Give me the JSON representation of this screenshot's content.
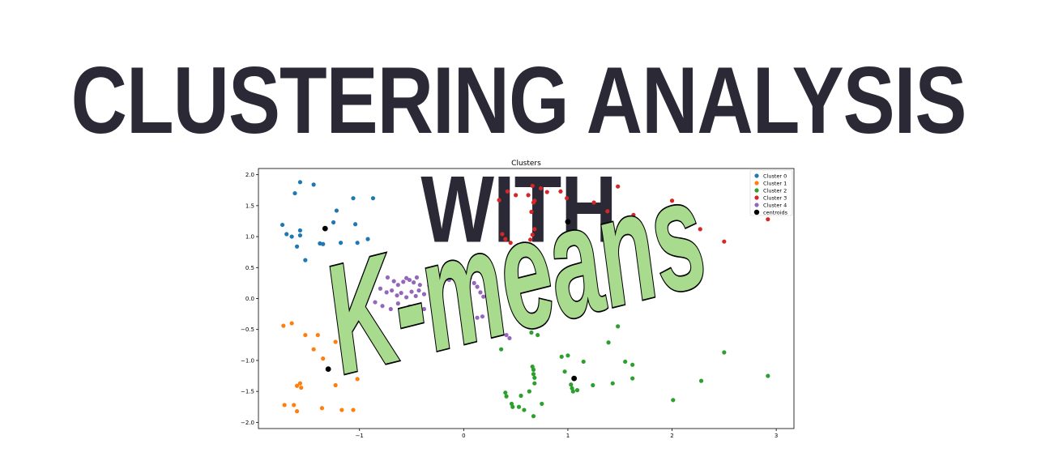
{
  "banner": {
    "title": "CLUSTERING ANALYSIS WITH",
    "subtitle": "K-means",
    "subtitle_fill": "#a9db8e",
    "subtitle_stroke": "#000000",
    "title_color": "#2a2935"
  },
  "chart_data": {
    "type": "scatter",
    "title": "Clusters",
    "xlabel": "",
    "ylabel": "",
    "xlim": [
      -1.97,
      3.17
    ],
    "ylim": [
      -2.1,
      2.1
    ],
    "xticks": [
      -1,
      0,
      1,
      2,
      3
    ],
    "xtick_labels": [
      "−1",
      "0",
      "1",
      "2",
      "3"
    ],
    "yticks": [
      -2.0,
      -1.5,
      -1.0,
      -0.5,
      0.0,
      0.5,
      1.0,
      1.5,
      2.0
    ],
    "ytick_labels": [
      "−2.0",
      "−1.5",
      "−1.0",
      "−0.5",
      "0.0",
      "0.5",
      "1.0",
      "1.5",
      "2.0"
    ],
    "grid": false,
    "legend_position": "top-right",
    "series": [
      {
        "name": "Cluster 0",
        "color": "#1f77b4",
        "points": [
          [
            -1.57,
            1.88
          ],
          [
            -1.44,
            1.84
          ],
          [
            -1.62,
            1.7
          ],
          [
            -1.06,
            1.62
          ],
          [
            -0.87,
            1.62
          ],
          [
            -1.22,
            1.42
          ],
          [
            -1.25,
            1.23
          ],
          [
            -1.74,
            1.19
          ],
          [
            -1.04,
            1.2
          ],
          [
            -1.57,
            1.1
          ],
          [
            -1.7,
            1.04
          ],
          [
            -1.65,
            1.0
          ],
          [
            -1.57,
            1.02
          ],
          [
            -1.38,
            0.89
          ],
          [
            -1.35,
            0.88
          ],
          [
            -1.18,
            0.9
          ],
          [
            -1.02,
            0.9
          ],
          [
            -0.92,
            0.96
          ],
          [
            -1.6,
            0.84
          ],
          [
            -1.52,
            0.62
          ],
          [
            -1.25,
            0.42
          ],
          [
            -0.84,
            0.57
          ]
        ]
      },
      {
        "name": "Cluster 1",
        "color": "#ff7f0e",
        "points": [
          [
            -1.73,
            -0.44
          ],
          [
            -1.65,
            -0.4
          ],
          [
            -1.52,
            -0.59
          ],
          [
            -1.4,
            -0.59
          ],
          [
            -1.44,
            -0.82
          ],
          [
            -1.35,
            -0.97
          ],
          [
            -1.23,
            -0.7
          ],
          [
            -1.6,
            -1.41
          ],
          [
            -1.57,
            -1.37
          ],
          [
            -1.56,
            -1.44
          ],
          [
            -1.23,
            -1.4
          ],
          [
            -1.02,
            -1.3
          ],
          [
            -1.72,
            -1.72
          ],
          [
            -1.63,
            -1.72
          ],
          [
            -1.6,
            -1.82
          ],
          [
            -1.36,
            -1.77
          ],
          [
            -1.17,
            -1.8
          ],
          [
            -1.06,
            -1.8
          ]
        ]
      },
      {
        "name": "Cluster 2",
        "color": "#2ca02c",
        "points": [
          [
            0.36,
            -0.82
          ],
          [
            0.4,
            -1.52
          ],
          [
            0.41,
            -1.58
          ],
          [
            0.46,
            -1.7
          ],
          [
            0.47,
            -1.75
          ],
          [
            0.53,
            -1.75
          ],
          [
            0.55,
            -1.57
          ],
          [
            0.58,
            -1.8
          ],
          [
            0.63,
            -1.5
          ],
          [
            0.66,
            -1.1
          ],
          [
            0.67,
            -1.15
          ],
          [
            0.67,
            -1.22
          ],
          [
            0.68,
            -1.28
          ],
          [
            0.68,
            -1.37
          ],
          [
            0.75,
            -1.7
          ],
          [
            0.67,
            -1.9
          ],
          [
            0.65,
            -0.55
          ],
          [
            0.71,
            -0.59
          ],
          [
            0.94,
            -0.94
          ],
          [
            0.97,
            -1.18
          ],
          [
            1.0,
            -0.92
          ],
          [
            1.03,
            -1.39
          ],
          [
            1.04,
            -1.45
          ],
          [
            1.05,
            -1.5
          ],
          [
            1.09,
            -1.48
          ],
          [
            1.15,
            -1.02
          ],
          [
            1.24,
            -1.4
          ],
          [
            1.39,
            -0.71
          ],
          [
            1.43,
            -1.37
          ],
          [
            1.48,
            -0.45
          ],
          [
            1.55,
            -1.02
          ],
          [
            1.62,
            -1.07
          ],
          [
            1.62,
            -1.29
          ],
          [
            2.01,
            -1.64
          ],
          [
            2.28,
            -1.33
          ],
          [
            2.5,
            -0.87
          ],
          [
            2.92,
            -1.25
          ]
        ]
      },
      {
        "name": "Cluster 3",
        "color": "#d62728",
        "points": [
          [
            0.42,
            1.73
          ],
          [
            0.5,
            1.67
          ],
          [
            0.62,
            1.67
          ],
          [
            0.66,
            1.82
          ],
          [
            0.67,
            1.55
          ],
          [
            0.68,
            1.58
          ],
          [
            0.74,
            1.78
          ],
          [
            0.65,
            1.4
          ],
          [
            0.8,
            1.72
          ],
          [
            0.34,
            1.59
          ],
          [
            0.37,
            1.04
          ],
          [
            0.4,
            0.96
          ],
          [
            0.45,
            0.9
          ],
          [
            0.55,
            0.8
          ],
          [
            0.64,
            0.87
          ],
          [
            0.64,
            0.95
          ],
          [
            0.66,
            1.03
          ],
          [
            0.68,
            1.12
          ],
          [
            0.93,
            1.73
          ],
          [
            0.99,
            1.62
          ],
          [
            0.95,
            0.97
          ],
          [
            1.25,
            1.55
          ],
          [
            1.38,
            1.41
          ],
          [
            1.48,
            1.81
          ],
          [
            1.63,
            1.35
          ],
          [
            1.69,
            1.22
          ],
          [
            2.0,
            1.58
          ],
          [
            2.27,
            1.12
          ],
          [
            2.5,
            0.92
          ],
          [
            2.92,
            1.28
          ]
        ]
      },
      {
        "name": "Cluster 4",
        "color": "#9467bd",
        "points": [
          [
            -0.86,
            0.41
          ],
          [
            -0.73,
            0.34
          ],
          [
            -0.67,
            0.28
          ],
          [
            -0.63,
            0.22
          ],
          [
            -0.58,
            0.27
          ],
          [
            -0.55,
            0.33
          ],
          [
            -0.52,
            0.3
          ],
          [
            -0.48,
            0.26
          ],
          [
            -0.45,
            0.34
          ],
          [
            -0.42,
            0.22
          ],
          [
            -0.8,
            0.16
          ],
          [
            -0.74,
            0.1
          ],
          [
            -0.69,
            0.13
          ],
          [
            -0.64,
            0.05
          ],
          [
            -0.6,
            0.09
          ],
          [
            -0.55,
            0.02
          ],
          [
            -0.5,
            0.11
          ],
          [
            -0.46,
            0.04
          ],
          [
            -0.43,
            0.13
          ],
          [
            -0.38,
            0.07
          ],
          [
            -0.33,
            0.21
          ],
          [
            -0.27,
            0.15
          ],
          [
            -0.2,
            0.25
          ],
          [
            -0.14,
            0.3
          ],
          [
            -0.06,
            0.38
          ],
          [
            0.0,
            0.3
          ],
          [
            0.06,
            0.33
          ],
          [
            0.1,
            0.25
          ],
          [
            0.13,
            0.19
          ],
          [
            0.16,
            0.1
          ],
          [
            0.19,
            0.03
          ],
          [
            -0.85,
            -0.06
          ],
          [
            -0.78,
            -0.12
          ],
          [
            -0.7,
            -0.17
          ],
          [
            -0.63,
            -0.08
          ],
          [
            -0.57,
            -0.2
          ],
          [
            -0.52,
            -0.13
          ],
          [
            -0.44,
            -0.24
          ],
          [
            -0.38,
            -0.17
          ],
          [
            0.13,
            -0.31
          ],
          [
            0.18,
            -0.29
          ],
          [
            0.41,
            -0.59
          ],
          [
            0.44,
            -0.64
          ]
        ]
      },
      {
        "name": "centroids",
        "color": "#000000",
        "points": [
          [
            -1.33,
            1.13
          ],
          [
            1.0,
            1.24
          ],
          [
            -1.3,
            -1.14
          ],
          [
            1.06,
            -1.29
          ]
        ]
      }
    ]
  }
}
